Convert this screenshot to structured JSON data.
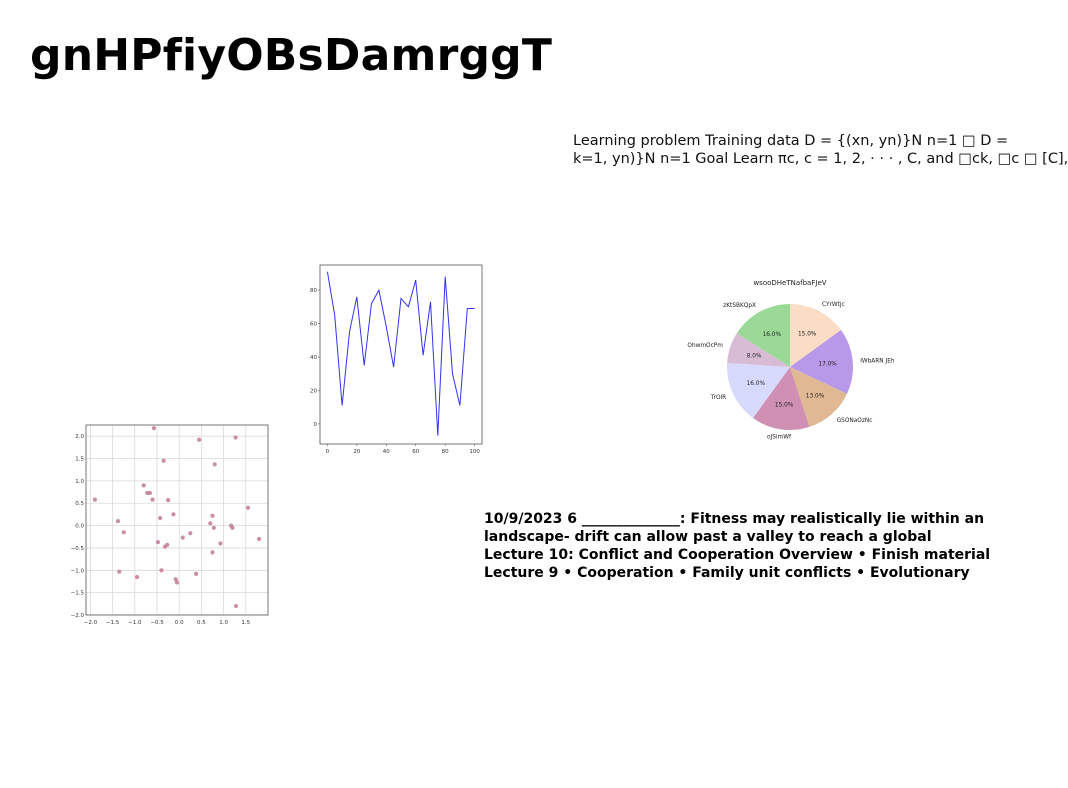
{
  "slide": {
    "title": "gnHPfiyOBsDamrggT",
    "text_top": "Learning problem Training data D = {(xn, yn)}N n=1 □ D =\nk=1, yn)}N n=1 Goal Learn πc, c = 1, 2, · · · , C, and □ck, □c □ [C],",
    "text_bottom": "10/9/2023 6 ______________: Fitness may realistically lie within an\nlandscape- drift can allow past a valley to reach a global\nLecture 10: Conflict and Cooperation Overview • Finish material\nLecture 9 • Cooperation • Family unit conflicts • Evolutionary"
  },
  "chart_data": [
    {
      "type": "scatter",
      "color": "#c27a94",
      "grid": true,
      "xlim": [
        -2.1,
        2.0
      ],
      "ylim": [
        -2.0,
        2.25
      ],
      "xticks": [
        -2.0,
        -1.5,
        -1.0,
        -0.5,
        0.0,
        0.5,
        1.0,
        1.5
      ],
      "yticks": [
        -2.0,
        -1.5,
        -1.0,
        -0.5,
        0.0,
        0.5,
        1.0,
        1.5,
        2.0
      ],
      "points": [
        [
          -1.9,
          0.58
        ],
        [
          -1.38,
          0.1
        ],
        [
          -1.35,
          -1.03
        ],
        [
          -1.25,
          -0.15
        ],
        [
          -0.95,
          -1.15
        ],
        [
          -0.8,
          0.9
        ],
        [
          -0.72,
          0.73
        ],
        [
          -0.66,
          0.73
        ],
        [
          -0.6,
          0.58
        ],
        [
          -0.57,
          2.18
        ],
        [
          -0.48,
          -0.37
        ],
        [
          -0.43,
          0.17
        ],
        [
          -0.4,
          -1.0
        ],
        [
          -0.35,
          1.45
        ],
        [
          -0.32,
          -0.47
        ],
        [
          -0.27,
          -0.43
        ],
        [
          -0.25,
          0.57
        ],
        [
          -0.13,
          0.25
        ],
        [
          -0.08,
          -1.2
        ],
        [
          -0.05,
          -1.27
        ],
        [
          0.08,
          -0.27
        ],
        [
          0.25,
          -0.17
        ],
        [
          0.38,
          -1.08
        ],
        [
          0.45,
          1.92
        ],
        [
          0.7,
          0.05
        ],
        [
          0.75,
          0.22
        ],
        [
          0.75,
          -0.6
        ],
        [
          0.78,
          -0.05
        ],
        [
          0.8,
          1.37
        ],
        [
          0.93,
          -0.4
        ],
        [
          1.17,
          0.0
        ],
        [
          1.2,
          -0.05
        ],
        [
          1.27,
          1.97
        ],
        [
          1.28,
          -1.8
        ],
        [
          1.55,
          0.4
        ],
        [
          1.8,
          -0.3
        ]
      ]
    },
    {
      "type": "line",
      "color": "#3333ee",
      "grid": false,
      "xlim": [
        -5,
        105
      ],
      "ylim": [
        -12,
        95
      ],
      "xticks": [
        0,
        20,
        40,
        60,
        80,
        100
      ],
      "yticks": [
        0,
        20,
        40,
        60,
        80
      ],
      "x": [
        0,
        5,
        10,
        15,
        20,
        25,
        30,
        35,
        40,
        45,
        50,
        55,
        60,
        65,
        70,
        75,
        80,
        85,
        90,
        95,
        100
      ],
      "y": [
        91,
        65,
        11,
        55,
        76,
        35,
        72,
        80,
        58,
        34,
        75,
        70,
        86,
        41,
        73,
        -7,
        88,
        30,
        11,
        69,
        69
      ]
    },
    {
      "type": "pie",
      "title": "wsooDHeTNafbaFJeV",
      "labels": [
        "CYrWtjc",
        "IWbARN JEh",
        "GSONaOzNc",
        "oJSimWf",
        "TrOlR",
        "OhwmOcPm",
        "zKtSBKQpX"
      ],
      "values": [
        15.0,
        17.0,
        13.0,
        15.0,
        16.0,
        8.0,
        16.0
      ],
      "autopct": [
        "15.0%",
        "17.0%",
        "13.0%",
        "15.0%",
        "16.0%",
        "8.0%",
        "16.0%"
      ],
      "colors": [
        "#fbdcc4",
        "#b898e8",
        "#e0b994",
        "#cf90b4",
        "#d8dafd",
        "#d8bcd6",
        "#9ad996"
      ]
    }
  ]
}
